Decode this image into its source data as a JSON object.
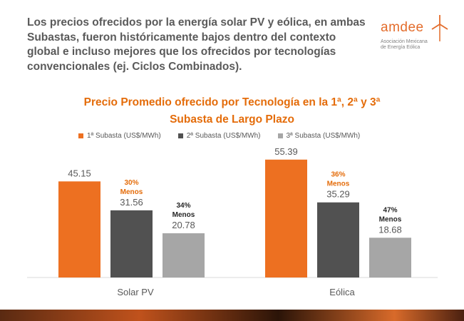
{
  "intro": {
    "lines": [
      "Los precios ofrecidos por la energía solar PV y eólica, en ambas",
      "Subastas, fueron históricamente bajos dentro del contexto",
      "global e incluso mejores que los ofrecidos por tecnologías",
      "convencionales (ej. Ciclos Combinados)."
    ]
  },
  "logo": {
    "word": "amdee",
    "sub_line1": "Asociación Mexicana",
    "sub_line2": "de Energía Eólica",
    "icon": "wind-turbine-icon"
  },
  "chart_data": {
    "type": "bar",
    "title_line1": "Precio Promedio ofrecido por Tecnología en la 1ª, 2ª y 3ª",
    "title_line2": "Subasta de Largo Plazo",
    "categories": [
      "Solar PV",
      "Eólica"
    ],
    "series": [
      {
        "name": "1ª Subasta (US$/MWh)",
        "values": [
          45.15,
          55.39
        ],
        "color": "#ed7021"
      },
      {
        "name": "2ª Subasta (US$/MWh)",
        "values": [
          31.56,
          35.29
        ],
        "color": "#515151"
      },
      {
        "name": "3ª Subasta (US$/MWh)",
        "values": [
          20.78,
          18.68
        ],
        "color": "#a6a6a6"
      }
    ],
    "data_labels": [
      [
        "45.15",
        "55.39"
      ],
      [
        "31.56",
        "35.29"
      ],
      [
        "20.78",
        "18.68"
      ]
    ],
    "annotations": [
      {
        "series": 1,
        "category": 0,
        "line1": "30%",
        "line2": "Menos",
        "color": "#e46c0a"
      },
      {
        "series": 2,
        "category": 0,
        "line1": "34%",
        "line2": "Menos",
        "color": "#262626"
      },
      {
        "series": 1,
        "category": 1,
        "line1": "36%",
        "line2": "Menos",
        "color": "#e46c0a"
      },
      {
        "series": 2,
        "category": 1,
        "line1": "47%",
        "line2": "Menos",
        "color": "#262626"
      }
    ],
    "ylim": [
      0,
      60
    ],
    "grid": false,
    "legend_position": "top"
  }
}
